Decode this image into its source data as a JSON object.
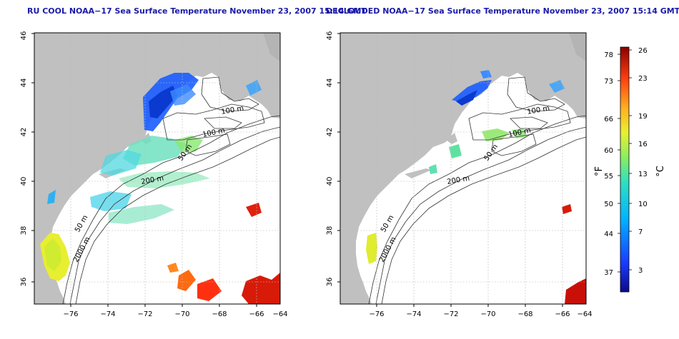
{
  "left_panel": {
    "title": "RU COOL NOAA−17 Sea Surface Temperature November 23, 2007 15:14 GMT",
    "contour_labels": [
      "100 m",
      "100 m",
      "50 m",
      "200 m",
      "50 m",
      "2000 m"
    ]
  },
  "right_panel": {
    "title": "DECLOUDED NOAA−17 Sea Surface Temperature November 23, 2007 15:14 GMT",
    "contour_labels": [
      "100 m",
      "100 m",
      "50 m",
      "200 m",
      "50 m",
      "2000 m"
    ]
  },
  "axes": {
    "x_ticks": [
      "−76",
      "−74",
      "−72",
      "−70",
      "−68",
      "−66",
      "−64"
    ],
    "y_ticks": [
      "36",
      "38",
      "40",
      "42",
      "44",
      "46"
    ]
  },
  "colorbar": {
    "f_label": "°F",
    "c_label": "°C",
    "f_ticks": [
      "78",
      "73",
      "66",
      "60",
      "55",
      "50",
      "44",
      "37"
    ],
    "c_ticks": [
      "26",
      "23",
      "19",
      "16",
      "13",
      "10",
      "7",
      "3"
    ]
  },
  "colors": {
    "land": "#c0c0c0",
    "ocean": "#ffffff",
    "title": "#1a1aa8",
    "contour": "#333333",
    "grid": "#bbbbbb"
  }
}
